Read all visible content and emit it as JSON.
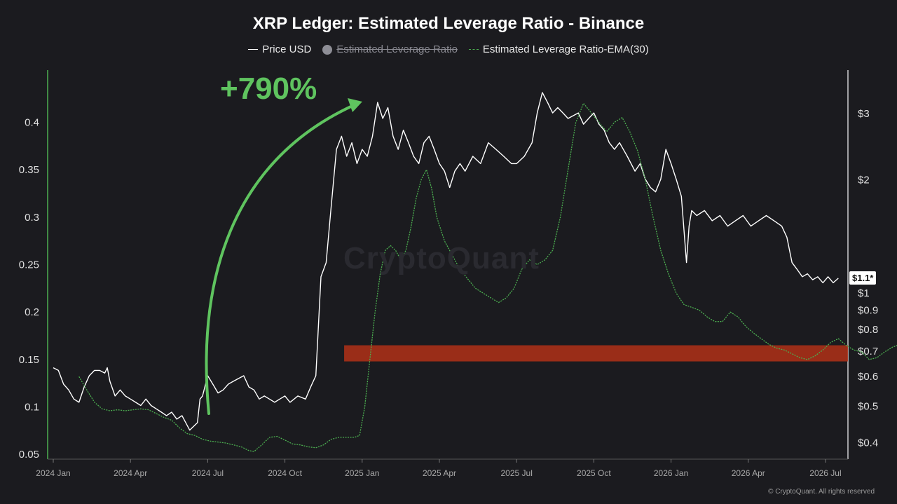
{
  "chart_data": {
    "type": "line",
    "title": "XRP Ledger: Estimated Leverage Ratio - Binance",
    "legend": [
      {
        "name": "Price USD",
        "style": "solid",
        "color": "#ffffff",
        "active": true
      },
      {
        "name": "Estimated Leverage Ratio",
        "style": "dot",
        "color": "#8e8e96",
        "active": false
      },
      {
        "name": "Estimated Leverage Ratio-EMA(30)",
        "style": "dashed",
        "color": "#4caf50",
        "active": true
      }
    ],
    "legend_position": "top-center",
    "x_ticks": [
      "2024 Jan",
      "2024 Apr",
      "2024 Jul",
      "2024 Oct",
      "2025 Jan",
      "2025 Apr",
      "2025 Jul",
      "2025 Oct",
      "2026 Jan",
      "2026 Apr",
      "2026 Jul"
    ],
    "left_axis": {
      "ticks": [
        "0.05",
        "0.1",
        "0.15",
        "0.2",
        "0.25",
        "0.3",
        "0.35",
        "0.4"
      ],
      "values": [
        0.05,
        0.1,
        0.15,
        0.2,
        0.25,
        0.3,
        0.35,
        0.4
      ],
      "range": [
        0.045,
        0.455
      ]
    },
    "right_axis": {
      "scale": "log",
      "ticks": [
        "$0.4",
        "$0.5",
        "$0.6",
        "$0.7",
        "$0.8",
        "$0.9",
        "$1",
        "$2",
        "$3"
      ],
      "values": [
        0.4,
        0.5,
        0.6,
        0.7,
        0.8,
        0.9,
        1,
        2,
        3
      ]
    },
    "price_tag": "$1.1*",
    "annotation": "+790%",
    "highlight_band": {
      "y_range": [
        0.148,
        0.165
      ],
      "x_start": "2024 Dec",
      "color": "#b03018"
    },
    "series": [
      {
        "name": "Price USD",
        "axis": "right",
        "color": "#ffffff",
        "points": [
          [
            0.0,
            0.63
          ],
          [
            0.2,
            0.62
          ],
          [
            0.4,
            0.57
          ],
          [
            0.6,
            0.55
          ],
          [
            0.8,
            0.52
          ],
          [
            1.0,
            0.51
          ],
          [
            1.2,
            0.56
          ],
          [
            1.4,
            0.6
          ],
          [
            1.6,
            0.62
          ],
          [
            1.8,
            0.62
          ],
          [
            2.0,
            0.61
          ],
          [
            2.1,
            0.63
          ],
          [
            2.2,
            0.58
          ],
          [
            2.4,
            0.53
          ],
          [
            2.6,
            0.55
          ],
          [
            2.8,
            0.53
          ],
          [
            3.0,
            0.52
          ],
          [
            3.2,
            0.51
          ],
          [
            3.4,
            0.5
          ],
          [
            3.6,
            0.52
          ],
          [
            3.8,
            0.5
          ],
          [
            4.0,
            0.49
          ],
          [
            4.2,
            0.48
          ],
          [
            4.4,
            0.47
          ],
          [
            4.6,
            0.48
          ],
          [
            4.8,
            0.46
          ],
          [
            5.0,
            0.47
          ],
          [
            5.3,
            0.43
          ],
          [
            5.6,
            0.45
          ],
          [
            5.7,
            0.52
          ],
          [
            5.8,
            0.53
          ],
          [
            6.0,
            0.6
          ],
          [
            6.2,
            0.57
          ],
          [
            6.4,
            0.54
          ],
          [
            6.6,
            0.55
          ],
          [
            6.8,
            0.57
          ],
          [
            7.0,
            0.58
          ],
          [
            7.2,
            0.59
          ],
          [
            7.4,
            0.6
          ],
          [
            7.6,
            0.56
          ],
          [
            7.8,
            0.55
          ],
          [
            8.0,
            0.52
          ],
          [
            8.2,
            0.53
          ],
          [
            8.4,
            0.52
          ],
          [
            8.6,
            0.51
          ],
          [
            8.8,
            0.52
          ],
          [
            9.0,
            0.53
          ],
          [
            9.2,
            0.51
          ],
          [
            9.5,
            0.53
          ],
          [
            9.8,
            0.52
          ],
          [
            10.0,
            0.56
          ],
          [
            10.2,
            0.6
          ],
          [
            10.4,
            1.1
          ],
          [
            10.6,
            1.2
          ],
          [
            10.8,
            1.7
          ],
          [
            11.0,
            2.4
          ],
          [
            11.2,
            2.6
          ],
          [
            11.4,
            2.3
          ],
          [
            11.6,
            2.5
          ],
          [
            11.8,
            2.2
          ],
          [
            12.0,
            2.4
          ],
          [
            12.2,
            2.3
          ],
          [
            12.4,
            2.6
          ],
          [
            12.6,
            3.2
          ],
          [
            12.8,
            2.9
          ],
          [
            13.0,
            3.1
          ],
          [
            13.2,
            2.6
          ],
          [
            13.4,
            2.4
          ],
          [
            13.6,
            2.7
          ],
          [
            13.8,
            2.5
          ],
          [
            14.0,
            2.3
          ],
          [
            14.2,
            2.2
          ],
          [
            14.4,
            2.5
          ],
          [
            14.6,
            2.6
          ],
          [
            14.8,
            2.4
          ],
          [
            15.0,
            2.2
          ],
          [
            15.2,
            2.1
          ],
          [
            15.4,
            1.9
          ],
          [
            15.6,
            2.1
          ],
          [
            15.8,
            2.2
          ],
          [
            16.0,
            2.1
          ],
          [
            16.3,
            2.3
          ],
          [
            16.6,
            2.2
          ],
          [
            16.9,
            2.5
          ],
          [
            17.2,
            2.4
          ],
          [
            17.5,
            2.3
          ],
          [
            17.8,
            2.2
          ],
          [
            18.0,
            2.2
          ],
          [
            18.3,
            2.3
          ],
          [
            18.6,
            2.5
          ],
          [
            18.8,
            3.0
          ],
          [
            19.0,
            3.4
          ],
          [
            19.2,
            3.2
          ],
          [
            19.4,
            3.0
          ],
          [
            19.6,
            3.1
          ],
          [
            19.8,
            3.0
          ],
          [
            20.0,
            2.9
          ],
          [
            20.2,
            2.95
          ],
          [
            20.4,
            3.0
          ],
          [
            20.6,
            2.8
          ],
          [
            20.8,
            2.9
          ],
          [
            21.0,
            3.0
          ],
          [
            21.2,
            2.8
          ],
          [
            21.4,
            2.7
          ],
          [
            21.6,
            2.5
          ],
          [
            21.8,
            2.4
          ],
          [
            22.0,
            2.5
          ],
          [
            22.3,
            2.3
          ],
          [
            22.6,
            2.1
          ],
          [
            22.8,
            2.2
          ],
          [
            23.0,
            2.0
          ],
          [
            23.2,
            1.9
          ],
          [
            23.4,
            1.85
          ],
          [
            23.6,
            2.0
          ],
          [
            23.8,
            2.4
          ],
          [
            24.0,
            2.2
          ],
          [
            24.2,
            2.0
          ],
          [
            24.4,
            1.8
          ],
          [
            24.6,
            1.2
          ],
          [
            24.7,
            1.5
          ],
          [
            24.8,
            1.65
          ],
          [
            25.0,
            1.6
          ],
          [
            25.3,
            1.65
          ],
          [
            25.6,
            1.55
          ],
          [
            25.9,
            1.6
          ],
          [
            26.2,
            1.5
          ],
          [
            26.5,
            1.55
          ],
          [
            26.8,
            1.6
          ],
          [
            27.1,
            1.5
          ],
          [
            27.4,
            1.55
          ],
          [
            27.7,
            1.6
          ],
          [
            28.0,
            1.55
          ],
          [
            28.3,
            1.5
          ],
          [
            28.5,
            1.4
          ],
          [
            28.7,
            1.2
          ],
          [
            28.9,
            1.15
          ],
          [
            29.1,
            1.1
          ],
          [
            29.3,
            1.12
          ],
          [
            29.5,
            1.08
          ],
          [
            29.7,
            1.1
          ],
          [
            29.9,
            1.06
          ],
          [
            30.1,
            1.1
          ],
          [
            30.3,
            1.06
          ],
          [
            30.5,
            1.09
          ]
        ]
      },
      {
        "name": "Estimated Leverage Ratio-EMA(30)",
        "axis": "left",
        "color": "#4caf50",
        "points": [
          [
            1.0,
            0.132
          ],
          [
            1.3,
            0.118
          ],
          [
            1.6,
            0.105
          ],
          [
            1.9,
            0.098
          ],
          [
            2.2,
            0.096
          ],
          [
            2.5,
            0.097
          ],
          [
            2.8,
            0.096
          ],
          [
            3.1,
            0.097
          ],
          [
            3.4,
            0.098
          ],
          [
            3.7,
            0.097
          ],
          [
            4.0,
            0.093
          ],
          [
            4.3,
            0.089
          ],
          [
            4.6,
            0.086
          ],
          [
            4.9,
            0.078
          ],
          [
            5.2,
            0.072
          ],
          [
            5.5,
            0.07
          ],
          [
            5.8,
            0.066
          ],
          [
            6.1,
            0.064
          ],
          [
            6.4,
            0.063
          ],
          [
            6.7,
            0.062
          ],
          [
            7.0,
            0.06
          ],
          [
            7.3,
            0.058
          ],
          [
            7.6,
            0.054
          ],
          [
            7.8,
            0.053
          ],
          [
            8.1,
            0.06
          ],
          [
            8.4,
            0.068
          ],
          [
            8.7,
            0.069
          ],
          [
            9.0,
            0.065
          ],
          [
            9.3,
            0.061
          ],
          [
            9.6,
            0.06
          ],
          [
            9.9,
            0.058
          ],
          [
            10.2,
            0.057
          ],
          [
            10.5,
            0.06
          ],
          [
            10.8,
            0.066
          ],
          [
            11.1,
            0.068
          ],
          [
            11.4,
            0.068
          ],
          [
            11.7,
            0.068
          ],
          [
            11.9,
            0.07
          ],
          [
            12.1,
            0.1
          ],
          [
            12.3,
            0.15
          ],
          [
            12.5,
            0.2
          ],
          [
            12.7,
            0.24
          ],
          [
            12.9,
            0.265
          ],
          [
            13.1,
            0.27
          ],
          [
            13.3,
            0.265
          ],
          [
            13.5,
            0.255
          ],
          [
            13.7,
            0.265
          ],
          [
            13.9,
            0.29
          ],
          [
            14.1,
            0.32
          ],
          [
            14.3,
            0.34
          ],
          [
            14.5,
            0.35
          ],
          [
            14.7,
            0.33
          ],
          [
            14.9,
            0.3
          ],
          [
            15.2,
            0.275
          ],
          [
            15.5,
            0.26
          ],
          [
            15.8,
            0.245
          ],
          [
            16.1,
            0.235
          ],
          [
            16.4,
            0.225
          ],
          [
            16.7,
            0.22
          ],
          [
            17.0,
            0.215
          ],
          [
            17.3,
            0.21
          ],
          [
            17.6,
            0.215
          ],
          [
            17.9,
            0.225
          ],
          [
            18.2,
            0.245
          ],
          [
            18.5,
            0.255
          ],
          [
            18.8,
            0.25
          ],
          [
            19.1,
            0.255
          ],
          [
            19.4,
            0.265
          ],
          [
            19.7,
            0.3
          ],
          [
            20.0,
            0.35
          ],
          [
            20.3,
            0.4
          ],
          [
            20.6,
            0.42
          ],
          [
            20.9,
            0.41
          ],
          [
            21.2,
            0.4
          ],
          [
            21.5,
            0.39
          ],
          [
            21.8,
            0.4
          ],
          [
            22.1,
            0.405
          ],
          [
            22.4,
            0.39
          ],
          [
            22.7,
            0.37
          ],
          [
            23.0,
            0.34
          ],
          [
            23.3,
            0.3
          ],
          [
            23.6,
            0.265
          ],
          [
            23.9,
            0.24
          ],
          [
            24.2,
            0.22
          ],
          [
            24.5,
            0.208
          ],
          [
            24.8,
            0.205
          ],
          [
            25.1,
            0.202
          ],
          [
            25.4,
            0.195
          ],
          [
            25.7,
            0.19
          ],
          [
            26.0,
            0.19
          ],
          [
            26.3,
            0.2
          ],
          [
            26.6,
            0.195
          ],
          [
            26.9,
            0.185
          ],
          [
            27.2,
            0.178
          ],
          [
            27.5,
            0.172
          ],
          [
            27.8,
            0.166
          ],
          [
            28.1,
            0.162
          ],
          [
            28.4,
            0.16
          ],
          [
            28.7,
            0.156
          ],
          [
            29.0,
            0.152
          ],
          [
            29.3,
            0.15
          ],
          [
            29.6,
            0.154
          ],
          [
            29.9,
            0.16
          ],
          [
            30.2,
            0.168
          ],
          [
            30.5,
            0.172
          ],
          [
            30.8,
            0.165
          ],
          [
            31.1,
            0.16
          ],
          [
            31.4,
            0.158
          ],
          [
            31.7,
            0.15
          ],
          [
            32.0,
            0.152
          ],
          [
            32.3,
            0.158
          ],
          [
            32.6,
            0.163
          ],
          [
            32.9,
            0.166
          ],
          [
            33.2,
            0.168
          ],
          [
            33.5,
            0.165
          ],
          [
            33.8,
            0.16
          ],
          [
            34.1,
            0.157
          ],
          [
            34.4,
            0.155
          ]
        ]
      }
    ]
  },
  "footer": {
    "copyright": "© CryptoQuant. All rights reserved"
  },
  "watermark": "CryptoQuant"
}
